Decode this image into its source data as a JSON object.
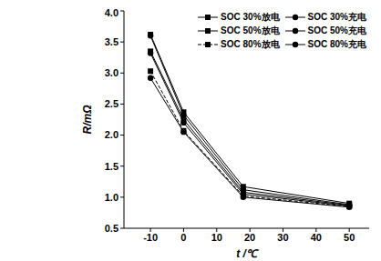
{
  "chart_data": {
    "type": "line",
    "x_label": "t /℃",
    "y_label": "R/mΩ",
    "x": [
      -10,
      0,
      18,
      50
    ],
    "series": [
      {
        "name": "SOC 30%放电",
        "color": "#000000",
        "marker": "square",
        "line_style": "solid",
        "values": [
          3.62,
          2.37,
          1.17,
          0.9
        ]
      },
      {
        "name": "SOC 30%充电",
        "color": "#000000",
        "marker": "circle",
        "line_style": "solid",
        "values": [
          3.6,
          2.32,
          1.12,
          0.88
        ]
      },
      {
        "name": "SOC 50%放电",
        "color": "#000000",
        "marker": "square",
        "line_style": "solid",
        "values": [
          3.35,
          2.25,
          1.08,
          0.87
        ]
      },
      {
        "name": "SOC 50%充电",
        "color": "#000000",
        "marker": "circle",
        "line_style": "solid",
        "values": [
          3.32,
          2.2,
          1.05,
          0.86
        ]
      },
      {
        "name": "SOC 80%放电",
        "color": "#000000",
        "marker": "square",
        "line_style": "dashed",
        "values": [
          3.03,
          2.07,
          1.02,
          0.85
        ]
      },
      {
        "name": "SOC 80%充电",
        "color": "#000000",
        "marker": "circle",
        "line_style": "solid",
        "values": [
          2.92,
          2.05,
          1.0,
          0.84
        ]
      }
    ],
    "xlim": [
      -18,
      56
    ],
    "xticks": [
      -10,
      0,
      10,
      20,
      30,
      40,
      50
    ],
    "ylim": [
      0.5,
      4.0
    ],
    "yticks": [
      0.5,
      {
        "value": 1.0,
        "label": "1.0"
      },
      1.5,
      {
        "value": 2.0,
        "label": "2.0"
      },
      2.5,
      {
        "value": 3.0,
        "label": "3.0"
      },
      3.5,
      {
        "value": 4.0,
        "label": "4.0"
      }
    ],
    "legend": "upper right",
    "grid": false
  }
}
